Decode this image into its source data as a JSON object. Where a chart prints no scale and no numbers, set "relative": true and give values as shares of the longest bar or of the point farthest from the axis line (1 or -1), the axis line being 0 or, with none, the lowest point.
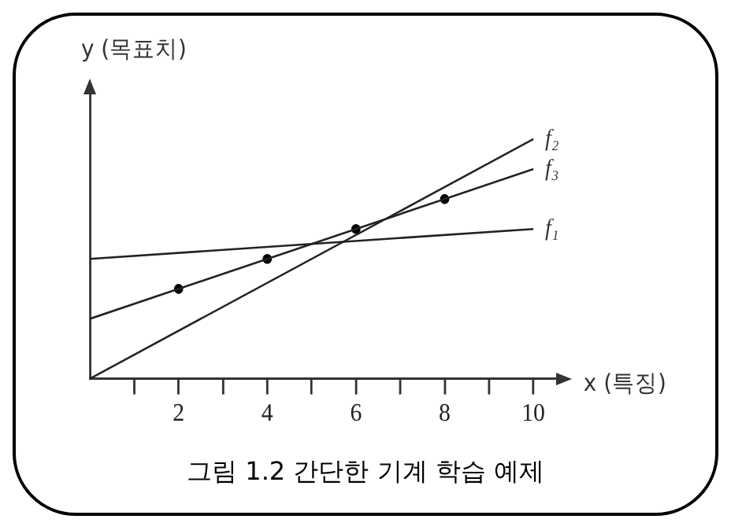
{
  "chart_data": {
    "type": "line",
    "title": "그림 1.2 간단한 기계 학습 예제",
    "xlabel": "x (특징)",
    "ylabel": "y (목표치)",
    "relative": true,
    "xlim": [
      0,
      10.6
    ],
    "xticks": [
      {
        "value": 1,
        "label": null
      },
      2,
      {
        "value": 3,
        "label": null
      },
      4,
      {
        "value": 5,
        "label": null
      },
      6,
      {
        "value": 7,
        "label": null
      },
      8,
      {
        "value": 9,
        "label": null
      },
      10
    ],
    "grid": false,
    "legend": false,
    "series": [
      {
        "name": "f₂",
        "color": "#222222",
        "marker": "none",
        "x": [
          0,
          10
        ],
        "values": [
          0,
          1
        ]
      },
      {
        "name": "f₃",
        "color": "#222222",
        "marker": "none",
        "x": [
          0,
          10
        ],
        "values": [
          0.25,
          0.875
        ]
      },
      {
        "name": "f₁",
        "color": "#222222",
        "marker": "none",
        "x": [
          0,
          10
        ],
        "values": [
          0.5,
          0.625
        ]
      },
      {
        "color": "#000000",
        "type": "scatter",
        "marker": "circle",
        "x": [
          2,
          4,
          6,
          8
        ],
        "values": [
          0.375,
          0.5,
          0.625,
          0.75
        ]
      }
    ]
  }
}
